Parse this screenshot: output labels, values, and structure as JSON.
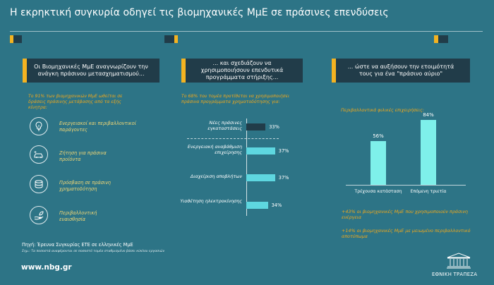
{
  "title": "Η εκρηκτική συγκυρία οδηγεί τις βιομηχανικές ΜμΕ σε πράσινες επενδύσεις",
  "colors": {
    "background": "#2d7486",
    "box": "#213c49",
    "accent_yellow": "#f4b321",
    "accent_orange": "#f0a81c",
    "bar": "#5ed7e0",
    "vbar": "#7ef0ea"
  },
  "left": {
    "box_text": "Οι Βιομηχανικές ΜμΕ αναγνωρίζουν την ανάγκη πράσινου μετασχηματισμού...",
    "subtitle": "Το 91% των βιομηχανικών ΜμΕ ωθείται σε δράσεις πράσινης μετάβασης από τα εξής κίνητρα:",
    "factors": [
      {
        "icon": "lightbulb-leaf-icon",
        "label": "Ενεργειακοί και περιβαλλοντικοί παράγοντες"
      },
      {
        "icon": "electric-car-icon",
        "label": "Ζήτηση για πράσινα προϊόντα"
      },
      {
        "icon": "coins-icon",
        "label": "Πρόσβαση σε πράσινη χρηματοδότηση"
      },
      {
        "icon": "hand-leaf-icon",
        "label": "Περιβαλλοντική ευαισθησία"
      }
    ]
  },
  "middle": {
    "box_text": "... και σχεδιάζουν να χρησιμοποιήσουν επενδυτικά προγράμματα στήριξης...",
    "subtitle": "Το 68% του τομέα προτίθεται να χρησιμοποιήσει πράσινα προγράμματα χρηματοδότησης για:"
  },
  "right": {
    "box_text": "... ώστε να αυξήσουν την ετοιμότητά τους για ένα \"πράσινο αύριο\"",
    "subtitle": "Περιβαλλοντικά φιλικές επιχειρήσεις:",
    "notes": [
      "+43% οι βιομηχανικές ΜμΕ που χρησιμοποιούν πράσινη ενέργεια",
      "+14% οι βιομηχανικές ΜμΕ με μειωμένο περιβαλλοντικό αποτύπωμα"
    ]
  },
  "chart_data": [
    {
      "type": "bar",
      "orientation": "horizontal",
      "categories": [
        "Νέες πράσινες εγκαταστάσεις",
        "Ενεργειακή αναβάθμιση επιχείρησης",
        "Διαχείριση αποβλήτων",
        "Υιοθέτηση ηλεκτροκίνησης"
      ],
      "values": [
        33,
        37,
        37,
        34
      ],
      "value_labels": [
        "33%",
        "37%",
        "37%",
        "34%"
      ],
      "xlim": [
        0,
        45
      ]
    },
    {
      "type": "bar",
      "orientation": "vertical",
      "categories": [
        "Τρέχουσα κατάσταση",
        "Επόμενη τριετία"
      ],
      "values": [
        56,
        84
      ],
      "value_labels": [
        "56%",
        "84%"
      ],
      "ylim": [
        0,
        100
      ]
    }
  ],
  "footer": {
    "source": "Πηγή: Έρευνα Συγκυρίας ΕΤΕ σε ελληνικές ΜμΕ",
    "note": "Σημ.: Τα ποσοστά αναφέρονται σε ποσοστό τομέα σταθμισμένο βάσει κύκλου εργασιών",
    "url": "www.nbg.gr",
    "bank": "ΕΘΝΙΚΗ ΤΡΑΠΕΖΑ"
  }
}
